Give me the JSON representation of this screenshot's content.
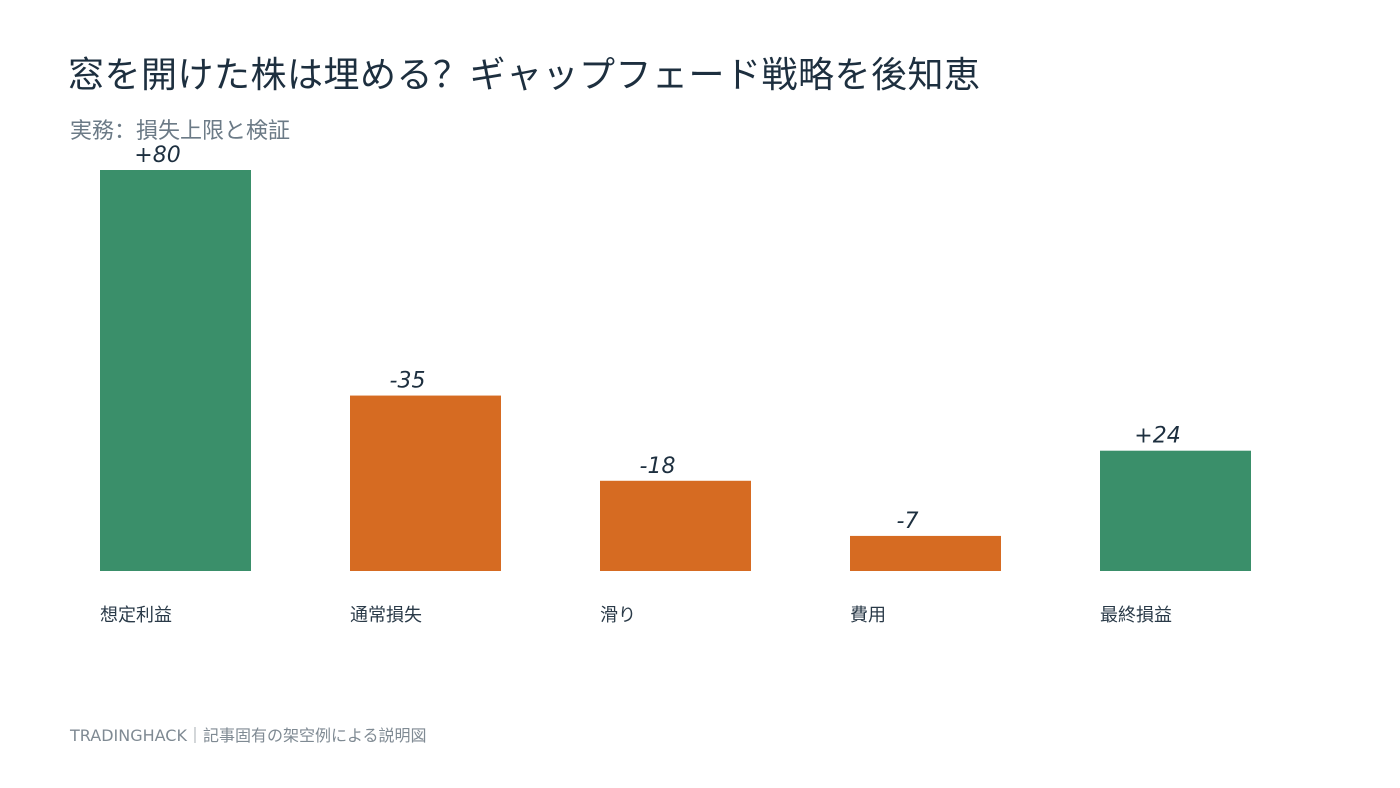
{
  "title": "窓を開けた株は埋める？ギャップフェード戦略を後知恵",
  "subtitle": "実務：損失上限と検証",
  "footer": "TRADINGHACK｜記事固有の架空例による説明図",
  "colors": {
    "positive": "#3a8f6a",
    "negative": "#d66b22",
    "value_label": "#1d2f3f",
    "category_label": "#2a3a48"
  },
  "chart_data": {
    "type": "bar",
    "categories": [
      "想定利益",
      "通常損失",
      "滑り",
      "費用",
      "最終損益"
    ],
    "values": [
      80,
      -35,
      -18,
      -7,
      24
    ],
    "value_labels": [
      "+80",
      "-35",
      "-18",
      "-7",
      "+24"
    ],
    "title": "窓を開けた株は埋める？ギャップフェード戦略を後知恵",
    "subtitle": "実務：損失上限と検証",
    "xlabel": "",
    "ylabel": "",
    "ylim": [
      0,
      80
    ],
    "grid": false,
    "legend": "none"
  }
}
